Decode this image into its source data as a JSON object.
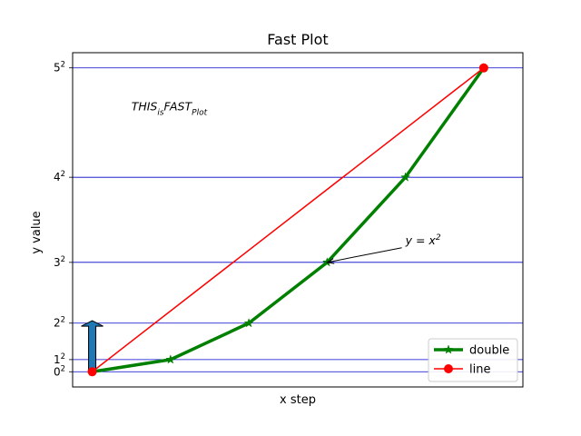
{
  "chart_data": {
    "type": "line",
    "title": "Fast Plot",
    "xlabel": "x step",
    "ylabel": "y value",
    "xlim": [
      -0.25,
      5.5
    ],
    "ylim": [
      -1.25,
      26.25
    ],
    "grid": {
      "axis": "y",
      "color": "#0000cc"
    },
    "yticks": [
      {
        "value": 0,
        "base": "0",
        "exp": "2"
      },
      {
        "value": 1,
        "base": "1",
        "exp": "2"
      },
      {
        "value": 4,
        "base": "2",
        "exp": "2"
      },
      {
        "value": 9,
        "base": "3",
        "exp": "2"
      },
      {
        "value": 16,
        "base": "4",
        "exp": "2"
      },
      {
        "value": 25,
        "base": "5",
        "exp": "2"
      }
    ],
    "series": [
      {
        "name": "double",
        "color": "#008000",
        "marker": "star",
        "x": [
          0,
          1,
          2,
          3,
          4,
          5
        ],
        "y": [
          0,
          1,
          4,
          9,
          16,
          25
        ]
      },
      {
        "name": "line",
        "color": "#ff0000",
        "marker": "circle",
        "x": [
          0,
          5
        ],
        "y": [
          0,
          25
        ]
      }
    ],
    "legend": {
      "placement": "lower-right"
    },
    "annotations": [
      {
        "kind": "text",
        "parts": [
          {
            "t": "THIS",
            "style": "base"
          },
          {
            "t": "is",
            "style": "sub"
          },
          {
            "t": "FAST",
            "style": "base"
          },
          {
            "t": "Plot",
            "style": "sub"
          }
        ],
        "x": 0.5,
        "y": 21.5
      },
      {
        "kind": "arrow-text",
        "parts": [
          {
            "t": "y = x",
            "style": "base"
          },
          {
            "t": "2",
            "style": "sup"
          }
        ],
        "text_x": 4.0,
        "text_y": 10.5,
        "target_x": 3.0,
        "target_y": 9.0
      },
      {
        "kind": "fancy-arrow",
        "color": "#1f77b4",
        "x": 0,
        "y_from": 0,
        "y_to": 4.2
      }
    ]
  }
}
